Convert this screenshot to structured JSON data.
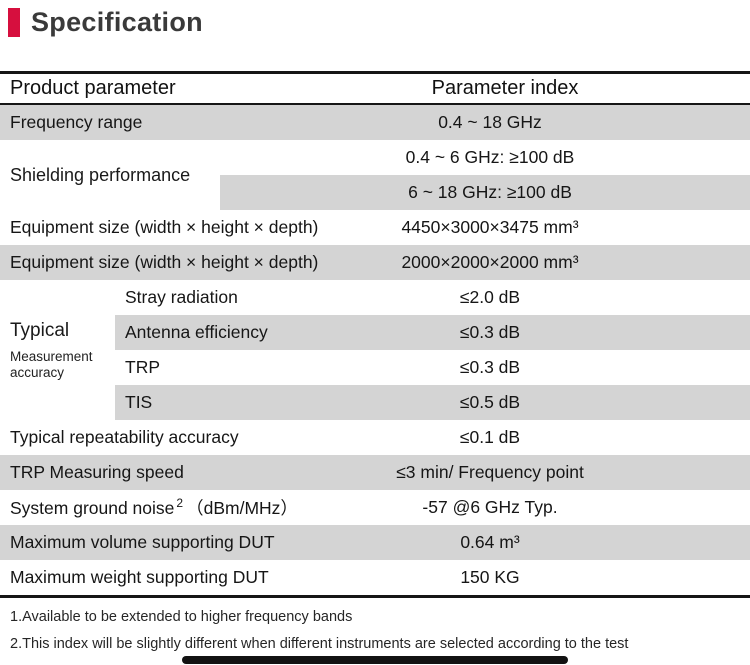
{
  "page": {
    "title": "Specification"
  },
  "table": {
    "header": {
      "col_product": "Product parameter",
      "col_index": "Parameter index"
    },
    "frequency_range": {
      "label": "Frequency range",
      "value": "0.4 ~ 18 GHz"
    },
    "shielding": {
      "label": "Shielding performance",
      "rows": [
        {
          "value": "0.4 ~ 6 GHz: ≥100 dB"
        },
        {
          "value": "6 ~ 18 GHz: ≥100 dB"
        }
      ]
    },
    "equipment_size_large": {
      "label": "Equipment size (width × height × depth)",
      "value": "4450×3000×3475 mm³"
    },
    "equipment_size_small": {
      "label": "Equipment size (width × height × depth)",
      "value": "2000×2000×2000 mm³"
    },
    "measurement_accuracy": {
      "label_title": "Typical",
      "label_subtitle": "Measurement accuracy",
      "rows": [
        {
          "label": "Stray radiation",
          "value": "≤2.0 dB"
        },
        {
          "label": "Antenna efficiency",
          "value": "≤0.3 dB"
        },
        {
          "label": "TRP",
          "value": "≤0.3 dB"
        },
        {
          "label": "TIS",
          "value": "≤0.5 dB"
        }
      ]
    },
    "repeatability": {
      "label": "Typical repeatability accuracy",
      "value": "≤0.1 dB"
    },
    "trp_speed": {
      "label": "TRP Measuring speed",
      "value": "≤3 min/ Frequency point"
    },
    "ground_noise": {
      "label": "System ground noise",
      "footnote_ref": "2",
      "label_unit": "（dBm/MHz）",
      "value": "-57 @6 GHz Typ."
    },
    "max_volume": {
      "label": "Maximum volume supporting DUT",
      "value": "0.64 m³"
    },
    "max_weight": {
      "label": "Maximum weight supporting DUT",
      "value": "150 KG"
    }
  },
  "footnotes": {
    "note1": "1.Available to be extended to higher frequency bands",
    "note2": "2.This index will be slightly different when different instruments are selected according to the test"
  },
  "colors": {
    "accent": "#d60f3e",
    "row_shade": "#d4d4d4",
    "border": "#161616"
  }
}
